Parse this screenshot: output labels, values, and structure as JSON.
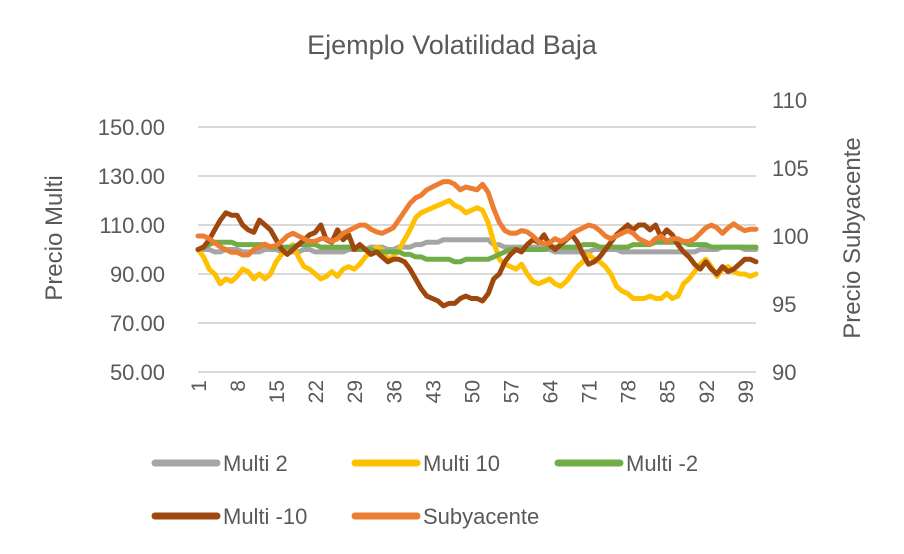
{
  "chart_data": {
    "type": "line",
    "title": "Ejemplo Volatilidad Baja",
    "ylabel": "Precio Multi",
    "y2label": "Precio Subyacente",
    "ylim": [
      50,
      150
    ],
    "y2lim": [
      90,
      110
    ],
    "yticks": [
      "150.00",
      "130.00",
      "110.00",
      "90.00",
      "70.00",
      "50.00"
    ],
    "y2ticks": [
      "110",
      "105",
      "100",
      "95",
      "90"
    ],
    "x": [
      1,
      2,
      3,
      4,
      5,
      6,
      7,
      8,
      9,
      10,
      11,
      12,
      13,
      14,
      15,
      16,
      17,
      18,
      19,
      20,
      21,
      22,
      23,
      24,
      25,
      26,
      27,
      28,
      29,
      30,
      31,
      32,
      33,
      34,
      35,
      36,
      37,
      38,
      39,
      40,
      41,
      42,
      43,
      44,
      45,
      46,
      47,
      48,
      49,
      50,
      51,
      52,
      53,
      54,
      55,
      56,
      57,
      58,
      59,
      60,
      61,
      62,
      63,
      64,
      65,
      66,
      67,
      68,
      69,
      70,
      71,
      72,
      73,
      74,
      75,
      76,
      77,
      78,
      79,
      80,
      81,
      82,
      83,
      84,
      85,
      86,
      87,
      88,
      89,
      90,
      91,
      92,
      93,
      94,
      95,
      96,
      97,
      98,
      99,
      100,
      101
    ],
    "xticks": [
      "1",
      "8",
      "15",
      "22",
      "29",
      "36",
      "43",
      "50",
      "57",
      "64",
      "71",
      "78",
      "85",
      "92",
      "99"
    ],
    "grid": true,
    "legend": "bottom",
    "series": [
      {
        "name": "Multi 2",
        "axis": "left",
        "color": "#A5A5A5",
        "values": [
          100,
          100,
          100,
          99,
          99,
          100,
          100,
          100,
          99,
          99,
          99,
          99,
          100,
          100,
          100,
          99,
          99,
          99,
          99,
          100,
          100,
          99,
          99,
          99,
          99,
          99,
          99,
          100,
          100,
          100,
          100,
          101,
          101,
          101,
          100,
          100,
          101,
          101,
          101,
          102,
          102,
          103,
          103,
          103,
          104,
          104,
          104,
          104,
          104,
          104,
          104,
          104,
          104,
          102,
          102,
          101,
          101,
          101,
          101,
          101,
          101,
          101,
          100,
          100,
          99,
          99,
          99,
          99,
          99,
          99,
          99,
          100,
          100,
          100,
          100,
          100,
          99,
          99,
          99,
          99,
          99,
          99,
          99,
          99,
          99,
          99,
          99,
          99,
          99,
          99,
          100,
          100,
          100,
          100,
          101,
          101,
          101,
          101,
          100,
          100,
          100
        ]
      },
      {
        "name": "Multi 10",
        "axis": "left",
        "color": "#FFC000",
        "values": [
          100,
          97,
          92,
          90,
          86,
          88,
          87,
          89,
          92,
          91,
          88,
          90,
          88,
          90,
          95,
          98,
          100,
          102,
          97,
          93,
          92,
          90,
          88,
          89,
          91,
          89,
          92,
          93,
          92,
          94,
          97,
          99,
          101,
          100,
          96,
          97,
          100,
          104,
          108,
          113,
          115,
          116,
          117,
          118,
          119,
          120,
          118,
          117,
          115,
          116,
          117,
          116,
          111,
          103,
          96,
          94,
          93,
          92,
          94,
          90,
          87,
          86,
          87,
          88,
          86,
          85,
          87,
          90,
          93,
          95,
          98,
          96,
          95,
          93,
          90,
          85,
          83,
          82,
          80,
          80,
          80,
          81,
          80,
          80,
          82,
          80,
          81,
          86,
          88,
          91,
          94,
          96,
          93,
          89,
          92,
          93,
          91,
          90,
          90,
          89,
          90
        ]
      },
      {
        "name": "Multi -2",
        "axis": "left",
        "color": "#70AD47",
        "values": [
          100,
          101,
          102,
          103,
          103,
          103,
          103,
          102,
          102,
          102,
          102,
          102,
          102,
          101,
          101,
          101,
          101,
          101,
          102,
          102,
          102,
          102,
          101,
          101,
          101,
          101,
          101,
          101,
          100,
          100,
          100,
          100,
          99,
          99,
          99,
          99,
          99,
          98,
          98,
          97,
          97,
          96,
          96,
          96,
          96,
          96,
          95,
          95,
          96,
          96,
          96,
          96,
          96,
          97,
          98,
          99,
          100,
          100,
          100,
          100,
          100,
          100,
          100,
          101,
          101,
          101,
          101,
          101,
          101,
          102,
          102,
          102,
          101,
          101,
          101,
          101,
          101,
          101,
          102,
          102,
          102,
          102,
          103,
          103,
          103,
          103,
          103,
          103,
          102,
          102,
          102,
          102,
          101,
          101,
          101,
          101,
          101,
          101,
          101,
          101,
          101
        ]
      },
      {
        "name": "Multi -10",
        "axis": "left",
        "color": "#9E480E",
        "values": [
          100,
          101,
          104,
          108,
          112,
          115,
          114,
          114,
          110,
          108,
          107,
          112,
          110,
          108,
          104,
          100,
          98,
          100,
          102,
          104,
          106,
          107,
          110,
          104,
          103,
          108,
          104,
          106,
          100,
          102,
          100,
          98,
          99,
          97,
          95,
          96,
          96,
          95,
          92,
          88,
          84,
          81,
          80,
          79,
          77,
          78,
          78,
          80,
          81,
          80,
          80,
          79,
          82,
          88,
          90,
          95,
          98,
          100,
          99,
          102,
          104,
          103,
          106,
          102,
          100,
          102,
          104,
          106,
          103,
          98,
          94,
          95,
          97,
          100,
          103,
          106,
          108,
          110,
          108,
          110,
          110,
          108,
          110,
          105,
          108,
          106,
          102,
          99,
          97,
          94,
          92,
          95,
          92,
          90,
          93,
          91,
          92,
          94,
          96,
          96,
          95
        ]
      },
      {
        "name": "Subyacente",
        "axis": "right",
        "color": "#ED7D31",
        "values": [
          100,
          100,
          99.8,
          99.5,
          99.2,
          99,
          98.8,
          98.8,
          98.6,
          98.6,
          99,
          99.2,
          99.4,
          99.2,
          99.3,
          99.6,
          100,
          100.2,
          100,
          99.8,
          99.6,
          99.6,
          99.8,
          99.8,
          99.6,
          99.8,
          100.2,
          100.4,
          100.6,
          100.8,
          100.8,
          100.5,
          100.3,
          100.2,
          100.4,
          100.6,
          101.2,
          101.8,
          102.4,
          102.8,
          103,
          103.4,
          103.6,
          103.8,
          104,
          104,
          103.8,
          103.4,
          103.6,
          103.5,
          103.4,
          103.8,
          103.2,
          102,
          101,
          100.4,
          100.2,
          100.2,
          100.4,
          100.3,
          100,
          99.6,
          99.4,
          99.5,
          99.8,
          99.6,
          99.8,
          100.2,
          100.4,
          100.6,
          100.8,
          100.7,
          100.4,
          100,
          99.8,
          100,
          100.2,
          100.4,
          100.2,
          99.8,
          99.6,
          99.4,
          99.8,
          100,
          99.6,
          99.8,
          99.8,
          99.6,
          99.6,
          99.8,
          100.2,
          100.6,
          100.8,
          100.6,
          100.2,
          100.6,
          100.9,
          100.6,
          100.4,
          100.5,
          100.5
        ]
      }
    ]
  }
}
